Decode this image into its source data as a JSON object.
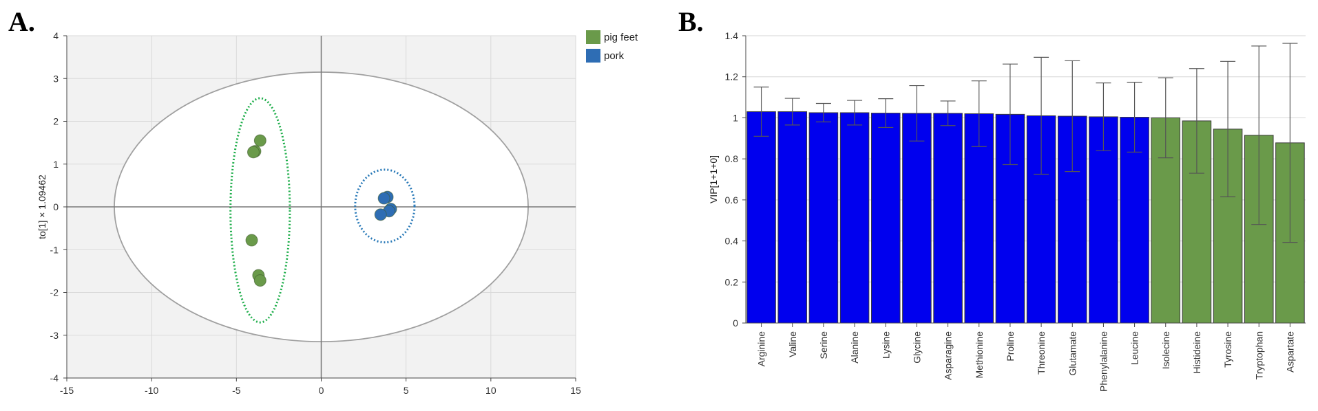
{
  "panels": {
    "a_label": "A.",
    "b_label": "B."
  },
  "chart_data": [
    {
      "type": "scatter",
      "panel": "A",
      "ylabel": "to[1] × 1.09462",
      "xlabel": "",
      "xlim": [
        -15,
        15
      ],
      "ylim": [
        -4,
        4
      ],
      "xticks": [
        "-15",
        "-10",
        "-5",
        "0",
        "5",
        "10",
        "15"
      ],
      "yticks": [
        "4",
        "3",
        "2",
        "1",
        "0",
        "-1",
        "-2",
        "-3",
        "-4"
      ],
      "grid": true,
      "legend": "top-right",
      "series": [
        {
          "name": "pig feet",
          "color": "#6a9a4a",
          "points": [
            [
              -3.6,
              1.55
            ],
            [
              -3.9,
              1.3
            ],
            [
              -4.0,
              1.28
            ],
            [
              -4.1,
              -0.78
            ],
            [
              -3.7,
              -1.6
            ],
            [
              -3.6,
              -1.72
            ]
          ]
        },
        {
          "name": "pork",
          "color": "#2e6db4",
          "points": [
            [
              3.9,
              0.23
            ],
            [
              3.7,
              0.2
            ],
            [
              4.1,
              -0.05
            ],
            [
              4.0,
              -0.1
            ],
            [
              3.5,
              -0.18
            ]
          ]
        }
      ],
      "hotelling_ellipse": {
        "cx": 0,
        "cy": 0,
        "rx": 12.2,
        "ry": 3.15,
        "color": "#a0a0a0"
      },
      "group_ellipses": [
        {
          "group": "pig feet",
          "cx": -3.6,
          "cy": -0.08,
          "rx": 1.75,
          "ry": 2.62,
          "color": "#1fae4b"
        },
        {
          "group": "pork",
          "cx": 3.75,
          "cy": 0.02,
          "rx": 1.75,
          "ry": 0.85,
          "color": "#2a7ab8"
        }
      ]
    },
    {
      "type": "bar",
      "panel": "B",
      "ylabel": "VIP[1+1+0]",
      "xlabel": "",
      "ylim": [
        0,
        1.4
      ],
      "yticks": [
        "0",
        "0.2",
        "0.4",
        "0.6",
        "0.8",
        "1",
        "1.2",
        "1.4"
      ],
      "grid": true,
      "categories": [
        "Arginine",
        "Valine",
        "Serine",
        "Alanine",
        "Lysine",
        "Glycine",
        "Asparagine",
        "Methionine",
        "Proline",
        "Threonine",
        "Glutamate",
        "Phenylalanine",
        "Leucine",
        "Isolecine",
        "Histideine",
        "Tyrosine",
        "Tryptophan",
        "Aspartate"
      ],
      "values": [
        1.03,
        1.03,
        1.025,
        1.025,
        1.023,
        1.022,
        1.022,
        1.02,
        1.017,
        1.01,
        1.008,
        1.005,
        1.003,
        1.0,
        0.985,
        0.945,
        0.915,
        0.878
      ],
      "errors": [
        0.12,
        0.065,
        0.045,
        0.06,
        0.07,
        0.135,
        0.06,
        0.16,
        0.245,
        0.285,
        0.27,
        0.165,
        0.17,
        0.195,
        0.255,
        0.33,
        0.435,
        0.485
      ],
      "colors": [
        "#0000ee",
        "#0000ee",
        "#0000ee",
        "#0000ee",
        "#0000ee",
        "#0000ee",
        "#0000ee",
        "#0000ee",
        "#0000ee",
        "#0000ee",
        "#0000ee",
        "#0000ee",
        "#0000ee",
        "#6a9a4a",
        "#6a9a4a",
        "#6a9a4a",
        "#6a9a4a",
        "#6a9a4a"
      ]
    }
  ]
}
